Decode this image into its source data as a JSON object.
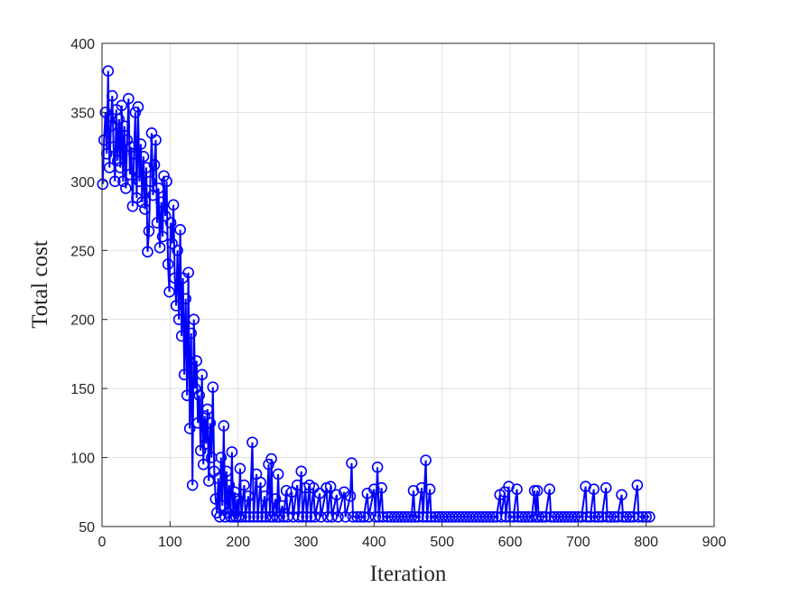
{
  "chart_data": {
    "type": "line",
    "xlabel": "Iteration",
    "ylabel": "Total cost",
    "color": "#0000ff",
    "marker": "circle",
    "grid": true,
    "xlim": [
      0,
      900
    ],
    "xticks": [
      0,
      100,
      200,
      300,
      400,
      500,
      600,
      700,
      800,
      900
    ],
    "ylim": [
      50,
      400
    ],
    "yticks": [
      50,
      100,
      150,
      200,
      250,
      300,
      350,
      400
    ],
    "x": [
      1,
      3,
      5,
      7,
      9,
      11,
      13,
      15,
      17,
      19,
      21,
      23,
      25,
      27,
      29,
      31,
      33,
      35,
      37,
      39,
      41,
      43,
      45,
      47,
      49,
      51,
      53,
      55,
      57,
      59,
      61,
      63,
      65,
      67,
      69,
      71,
      73,
      75,
      77,
      79,
      81,
      83,
      85,
      87,
      89,
      91,
      93,
      95,
      97,
      99,
      101,
      103,
      105,
      107,
      109,
      111,
      113,
      115,
      117,
      119,
      121,
      123,
      125,
      127,
      129,
      131,
      133,
      135,
      137,
      139,
      141,
      143,
      145,
      147,
      149,
      151,
      153,
      155,
      157,
      159,
      161,
      163,
      165,
      167,
      169,
      171,
      173,
      175,
      177,
      179,
      181,
      183,
      185,
      187,
      189,
      191,
      193,
      195,
      197,
      199,
      201,
      203,
      205,
      209,
      211,
      215,
      217,
      221,
      223,
      227,
      229,
      233,
      235,
      239,
      241,
      245,
      247,
      249,
      251,
      255,
      257,
      259,
      261,
      265,
      267,
      271,
      273,
      279,
      281,
      287,
      289,
      293,
      295,
      299,
      301,
      305,
      307,
      311,
      313,
      320,
      322,
      330,
      332,
      336,
      338,
      345,
      347,
      356,
      358,
      365,
      367,
      369,
      375,
      380,
      385,
      390,
      392,
      400,
      402,
      405,
      407,
      411,
      413,
      420,
      425,
      430,
      435,
      440,
      445,
      450,
      455,
      458,
      460,
      465,
      470,
      472,
      476,
      478,
      482,
      484,
      490,
      495,
      500,
      505,
      510,
      515,
      520,
      525,
      530,
      535,
      540,
      545,
      550,
      555,
      560,
      565,
      570,
      575,
      580,
      585,
      587,
      592,
      594,
      598,
      600,
      605,
      610,
      612,
      617,
      622,
      627,
      632,
      636,
      638,
      640,
      642,
      647,
      652,
      658,
      660,
      665,
      670,
      675,
      680,
      685,
      690,
      695,
      700,
      705,
      711,
      713,
      718,
      723,
      725,
      730,
      735,
      741,
      743,
      748,
      753,
      758,
      764,
      766,
      771,
      776,
      781,
      787,
      789,
      795,
      800,
      805
    ],
    "values": [
      298,
      330,
      350,
      320,
      380,
      310,
      340,
      362,
      325,
      300,
      352,
      315,
      345,
      310,
      355,
      300,
      340,
      295,
      330,
      360,
      305,
      325,
      282,
      320,
      350,
      288,
      354,
      300,
      327,
      285,
      318,
      280,
      310,
      249,
      264,
      300,
      335,
      290,
      312,
      330,
      270,
      295,
      252,
      285,
      260,
      304,
      275,
      300,
      240,
      220,
      270,
      255,
      283,
      230,
      210,
      250,
      200,
      265,
      188,
      230,
      160,
      215,
      145,
      234,
      121,
      190,
      80,
      200,
      150,
      170,
      125,
      145,
      105,
      160,
      95,
      130,
      110,
      135,
      83,
      125,
      100,
      151,
      90,
      70,
      60,
      85,
      57,
      100,
      65,
      123,
      57,
      90,
      60,
      80,
      57,
      104,
      57,
      75,
      57,
      70,
      57,
      92,
      57,
      80,
      57,
      72,
      57,
      111,
      57,
      88,
      57,
      82,
      57,
      72,
      57,
      95,
      57,
      99,
      57,
      70,
      57,
      88,
      57,
      65,
      57,
      76,
      57,
      75,
      57,
      80,
      57,
      90,
      57,
      78,
      57,
      80,
      57,
      78,
      57,
      74,
      57,
      78,
      57,
      79,
      57,
      73,
      57,
      75,
      57,
      72,
      96,
      57,
      57,
      57,
      57,
      74,
      57,
      77,
      57,
      93,
      57,
      78,
      57,
      57,
      57,
      57,
      57,
      57,
      57,
      57,
      57,
      76,
      57,
      57,
      78,
      57,
      98,
      57,
      77,
      57,
      57,
      57,
      57,
      57,
      57,
      57,
      57,
      57,
      57,
      57,
      57,
      57,
      57,
      57,
      57,
      57,
      57,
      57,
      57,
      73,
      57,
      75,
      57,
      79,
      57,
      57,
      77,
      57,
      57,
      57,
      57,
      57,
      76,
      57,
      76,
      57,
      57,
      57,
      77,
      57,
      57,
      57,
      57,
      57,
      57,
      57,
      57,
      57,
      57,
      79,
      57,
      57,
      77,
      57,
      57,
      57,
      78,
      57,
      57,
      57,
      57,
      73,
      57,
      57,
      57,
      57,
      80,
      57,
      57,
      57,
      57
    ]
  }
}
